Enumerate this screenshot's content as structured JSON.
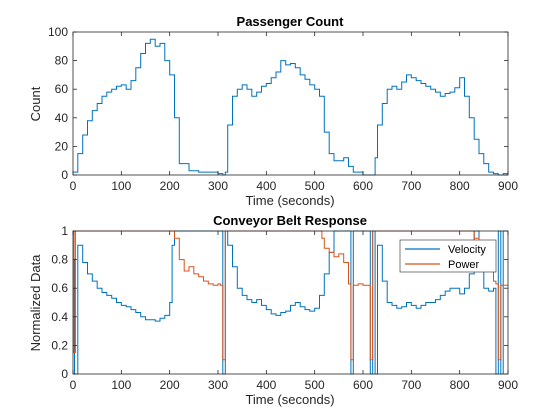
{
  "chart_data": [
    {
      "type": "line",
      "title": "Passenger Count",
      "xlabel": "Time (seconds)",
      "ylabel": "Count",
      "xlim": [
        0,
        900
      ],
      "ylim": [
        0,
        100
      ],
      "xticks": [
        0,
        100,
        200,
        300,
        400,
        500,
        600,
        700,
        800,
        900
      ],
      "yticks": [
        0,
        20,
        40,
        60,
        80,
        100
      ],
      "grid": false,
      "series": [
        {
          "color": "#0072BD",
          "x": [
            0,
            10,
            20,
            30,
            40,
            50,
            60,
            70,
            80,
            90,
            100,
            110,
            120,
            130,
            140,
            150,
            160,
            170,
            180,
            190,
            200,
            210,
            220,
            240,
            260,
            280,
            300,
            310,
            315,
            320,
            330,
            340,
            350,
            360,
            370,
            380,
            390,
            400,
            410,
            420,
            430,
            440,
            450,
            460,
            470,
            480,
            490,
            500,
            510,
            520,
            530,
            540,
            550,
            560,
            570,
            580,
            600,
            620,
            625,
            630,
            640,
            650,
            660,
            670,
            680,
            690,
            700,
            710,
            720,
            730,
            740,
            750,
            760,
            770,
            780,
            790,
            800,
            810,
            820,
            830,
            840,
            850,
            860,
            870,
            880,
            890,
            900
          ],
          "y": [
            2,
            15,
            28,
            38,
            45,
            50,
            55,
            58,
            60,
            62,
            63,
            60,
            66,
            75,
            85,
            92,
            95,
            90,
            92,
            80,
            70,
            40,
            8,
            3,
            2,
            2,
            1,
            0,
            2,
            35,
            55,
            60,
            63,
            60,
            55,
            58,
            62,
            64,
            68,
            72,
            80,
            77,
            78,
            75,
            70,
            67,
            63,
            60,
            55,
            30,
            15,
            10,
            10,
            12,
            6,
            2,
            0,
            0,
            12,
            35,
            50,
            60,
            62,
            60,
            65,
            70,
            68,
            66,
            64,
            62,
            60,
            58,
            55,
            57,
            58,
            61,
            68,
            55,
            40,
            25,
            15,
            8,
            2,
            1,
            0,
            1,
            0
          ]
        }
      ]
    },
    {
      "type": "line",
      "title": "Conveyor Belt Response",
      "xlabel": "Time (seconds)",
      "ylabel": "Normalized Data",
      "xlim": [
        0,
        900
      ],
      "ylim": [
        0,
        1
      ],
      "xticks": [
        0,
        100,
        200,
        300,
        400,
        500,
        600,
        700,
        800,
        900
      ],
      "yticks": [
        0,
        0.2,
        0.4,
        0.6,
        0.8,
        1
      ],
      "grid": false,
      "legend": "top-right",
      "series": [
        {
          "name": "Velocity",
          "color": "#0072BD",
          "x": [
            0,
            3,
            10,
            20,
            30,
            40,
            50,
            60,
            70,
            80,
            90,
            100,
            110,
            120,
            130,
            140,
            150,
            160,
            170,
            180,
            190,
            200,
            205,
            210,
            220,
            230,
            240,
            250,
            260,
            270,
            280,
            290,
            300,
            305,
            310,
            315,
            320,
            330,
            340,
            350,
            360,
            370,
            380,
            390,
            400,
            410,
            420,
            430,
            440,
            450,
            460,
            470,
            480,
            490,
            500,
            510,
            520,
            530,
            540,
            550,
            560,
            570,
            575,
            580,
            590,
            600,
            610,
            615,
            620,
            625,
            630,
            640,
            650,
            660,
            670,
            680,
            690,
            700,
            710,
            720,
            730,
            740,
            750,
            760,
            770,
            780,
            790,
            800,
            810,
            820,
            830,
            840,
            850,
            860,
            870,
            875,
            880,
            885,
            890,
            900
          ],
          "y": [
            0.8,
            0,
            0.9,
            0.78,
            0.7,
            0.65,
            0.6,
            0.57,
            0.55,
            0.53,
            0.5,
            0.48,
            0.47,
            0.45,
            0.43,
            0.4,
            0.38,
            0.38,
            0.37,
            0.39,
            0.41,
            0.5,
            0.9,
            1,
            1,
            1,
            1,
            1,
            1,
            1,
            1,
            1,
            1,
            1,
            0,
            1,
            0.9,
            0.75,
            0.6,
            0.55,
            0.52,
            0.5,
            0.52,
            0.48,
            0.45,
            0.42,
            0.41,
            0.43,
            0.44,
            0.48,
            0.5,
            0.47,
            0.45,
            0.44,
            0.46,
            0.55,
            0.7,
            0.85,
            1,
            1,
            1,
            1,
            0,
            1,
            1,
            1,
            1,
            0,
            1,
            0,
            0.9,
            0.65,
            0.5,
            0.48,
            0.46,
            0.47,
            0.5,
            0.48,
            0.46,
            0.48,
            0.5,
            0.5,
            0.52,
            0.55,
            0.58,
            0.6,
            0.6,
            0.56,
            0.6,
            0.7,
            1,
            0.75,
            0.6,
            0.58,
            0.6,
            0,
            1,
            0,
            1,
            1
          ]
        },
        {
          "name": "Power",
          "color": "#D95319",
          "x": [
            0,
            2,
            5,
            20,
            50,
            100,
            150,
            200,
            205,
            210,
            220,
            230,
            240,
            250,
            260,
            270,
            280,
            290,
            300,
            305,
            310,
            315,
            320,
            330,
            350,
            400,
            450,
            500,
            510,
            515,
            520,
            530,
            540,
            550,
            560,
            570,
            575,
            580,
            590,
            600,
            610,
            615,
            620,
            625,
            630,
            650,
            700,
            750,
            800,
            820,
            830,
            840,
            850,
            860,
            870,
            875,
            880,
            885,
            890,
            900
          ],
          "y": [
            1,
            0.15,
            1,
            1,
            1,
            1,
            1,
            1,
            1,
            0.95,
            0.8,
            0.72,
            0.75,
            0.7,
            0.68,
            0.65,
            0.63,
            0.62,
            0.63,
            0.62,
            0.1,
            1,
            1,
            1,
            1,
            1,
            1,
            1,
            1,
            0.95,
            0.88,
            0.85,
            0.82,
            0.84,
            0.78,
            0.63,
            0.1,
            0.62,
            0.63,
            0.62,
            0.62,
            0.1,
            1,
            1,
            1,
            1,
            1,
            1,
            1,
            1,
            0.95,
            0.9,
            0.85,
            0.75,
            0.65,
            0.63,
            0.1,
            0.62,
            0.62,
            0.62
          ]
        }
      ]
    }
  ]
}
